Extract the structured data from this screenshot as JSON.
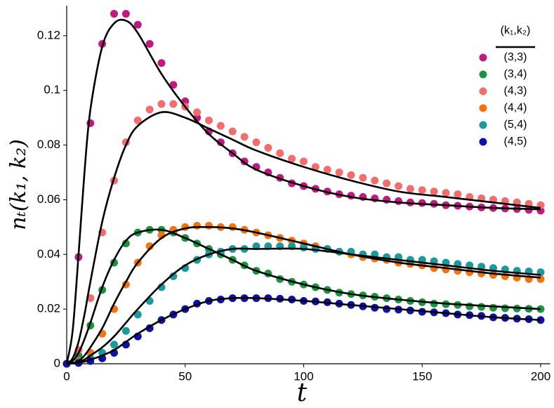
{
  "chart_data": {
    "type": "scatter",
    "x_label": "t",
    "y_label": "nₜ(k₁, k₂)",
    "legend_title": "(k₁,k₂)",
    "legend_position": "upper right",
    "xlim": [
      0,
      204
    ],
    "ylim": [
      0,
      0.131
    ],
    "xticks": [
      0,
      50,
      100,
      150,
      200
    ],
    "yticks": [
      0,
      0.02,
      0.04,
      0.06,
      0.08,
      0.1,
      0.12
    ],
    "fit_color": "#000000",
    "x": [
      0,
      5,
      10,
      15,
      20,
      25,
      30,
      35,
      40,
      45,
      50,
      55,
      60,
      65,
      70,
      75,
      80,
      85,
      90,
      95,
      100,
      105,
      110,
      115,
      120,
      125,
      130,
      135,
      140,
      145,
      150,
      155,
      160,
      165,
      170,
      175,
      180,
      185,
      190,
      195,
      200
    ],
    "fit_x": [
      0,
      2.5,
      5,
      7.5,
      10,
      15,
      20,
      25,
      30,
      40,
      50,
      60,
      70,
      80,
      100,
      120,
      140,
      160,
      180,
      200
    ],
    "series": [
      {
        "name": "(3,3)",
        "color": "#c0197f",
        "values": [
          0,
          0.039,
          0.088,
          0.117,
          0.128,
          0.128,
          0.124,
          0.117,
          0.11,
          0.102,
          0.096,
          0.09,
          0.085,
          0.081,
          0.077,
          0.074,
          0.072,
          0.07,
          0.068,
          0.066,
          0.065,
          0.064,
          0.063,
          0.062,
          0.0615,
          0.061,
          0.0605,
          0.06,
          0.0595,
          0.059,
          0.0588,
          0.0585,
          0.058,
          0.0578,
          0.0575,
          0.0572,
          0.057,
          0.0568,
          0.0566,
          0.0563,
          0.056
        ],
        "fit": [
          0,
          0.012,
          0.04,
          0.07,
          0.093,
          0.116,
          0.1245,
          0.1255,
          0.121,
          0.106,
          0.094,
          0.084,
          0.077,
          0.071,
          0.065,
          0.061,
          0.059,
          0.058,
          0.057,
          0.0565
        ]
      },
      {
        "name": "(3,4)",
        "color": "#1a9641",
        "values": [
          0,
          0.003,
          0.014,
          0.027,
          0.037,
          0.044,
          0.048,
          0.049,
          0.049,
          0.048,
          0.046,
          0.044,
          0.042,
          0.04,
          0.038,
          0.036,
          0.034,
          0.033,
          0.031,
          0.03,
          0.029,
          0.028,
          0.027,
          0.026,
          0.0255,
          0.025,
          0.0245,
          0.024,
          0.0235,
          0.023,
          0.0225,
          0.022,
          0.0218,
          0.0215,
          0.021,
          0.0208,
          0.0205,
          0.0203,
          0.0202,
          0.0201,
          0.02
        ],
        "fit": [
          0,
          0.001,
          0.004,
          0.009,
          0.015,
          0.028,
          0.038,
          0.045,
          0.048,
          0.049,
          0.046,
          0.042,
          0.038,
          0.034,
          0.029,
          0.0255,
          0.0235,
          0.022,
          0.021,
          0.02
        ]
      },
      {
        "name": "(4,3)",
        "color": "#f46d6d",
        "values": [
          0,
          0.005,
          0.024,
          0.048,
          0.067,
          0.081,
          0.089,
          0.093,
          0.095,
          0.095,
          0.094,
          0.092,
          0.089,
          0.087,
          0.085,
          0.083,
          0.081,
          0.079,
          0.077,
          0.075,
          0.074,
          0.072,
          0.071,
          0.07,
          0.069,
          0.068,
          0.067,
          0.066,
          0.065,
          0.064,
          0.0635,
          0.063,
          0.0625,
          0.062,
          0.061,
          0.0605,
          0.06,
          0.0595,
          0.059,
          0.0585,
          0.058
        ],
        "fit": [
          0,
          0.002,
          0.008,
          0.018,
          0.03,
          0.052,
          0.068,
          0.08,
          0.087,
          0.092,
          0.09,
          0.086,
          0.082,
          0.078,
          0.072,
          0.067,
          0.063,
          0.061,
          0.059,
          0.057
        ]
      },
      {
        "name": "(4,4)",
        "color": "#f5730c",
        "values": [
          0,
          0.001,
          0.004,
          0.011,
          0.02,
          0.029,
          0.037,
          0.043,
          0.047,
          0.049,
          0.05,
          0.0505,
          0.0505,
          0.05,
          0.05,
          0.049,
          0.048,
          0.047,
          0.046,
          0.045,
          0.044,
          0.043,
          0.042,
          0.041,
          0.04,
          0.039,
          0.0385,
          0.038,
          0.037,
          0.0365,
          0.036,
          0.035,
          0.0345,
          0.034,
          0.0335,
          0.033,
          0.0325,
          0.032,
          0.0315,
          0.031,
          0.031
        ],
        "fit": [
          0,
          0.0003,
          0.001,
          0.003,
          0.006,
          0.013,
          0.022,
          0.03,
          0.037,
          0.046,
          0.0495,
          0.05,
          0.0495,
          0.048,
          0.044,
          0.04,
          0.037,
          0.035,
          0.033,
          0.0315
        ]
      },
      {
        "name": "(5,4)",
        "color": "#1a9a9a",
        "values": [
          0,
          0.0005,
          0.002,
          0.004,
          0.007,
          0.012,
          0.018,
          0.023,
          0.028,
          0.032,
          0.035,
          0.038,
          0.04,
          0.041,
          0.042,
          0.042,
          0.043,
          0.043,
          0.043,
          0.043,
          0.0425,
          0.042,
          0.042,
          0.041,
          0.041,
          0.04,
          0.04,
          0.039,
          0.039,
          0.038,
          0.038,
          0.0375,
          0.037,
          0.0365,
          0.036,
          0.0355,
          0.035,
          0.0345,
          0.034,
          0.0338,
          0.0335
        ],
        "fit": [
          0,
          0.0002,
          0.0006,
          0.0015,
          0.003,
          0.006,
          0.01,
          0.015,
          0.02,
          0.029,
          0.036,
          0.04,
          0.042,
          0.042,
          0.042,
          0.04,
          0.038,
          0.036,
          0.034,
          0.0325
        ]
      },
      {
        "name": "(4,5)",
        "color": "#1010a8",
        "values": [
          0,
          0.0003,
          0.001,
          0.002,
          0.004,
          0.007,
          0.01,
          0.013,
          0.016,
          0.018,
          0.02,
          0.022,
          0.023,
          0.0235,
          0.024,
          0.024,
          0.024,
          0.024,
          0.0238,
          0.0235,
          0.023,
          0.0228,
          0.0225,
          0.022,
          0.0215,
          0.021,
          0.0205,
          0.02,
          0.0198,
          0.0195,
          0.019,
          0.0188,
          0.0185,
          0.018,
          0.0178,
          0.0175,
          0.017,
          0.0168,
          0.0165,
          0.0163,
          0.016
        ],
        "fit": [
          0,
          0.0001,
          0.0003,
          0.0008,
          0.0015,
          0.003,
          0.005,
          0.008,
          0.011,
          0.016,
          0.02,
          0.023,
          0.024,
          0.024,
          0.023,
          0.0215,
          0.02,
          0.0185,
          0.017,
          0.016
        ]
      }
    ]
  }
}
